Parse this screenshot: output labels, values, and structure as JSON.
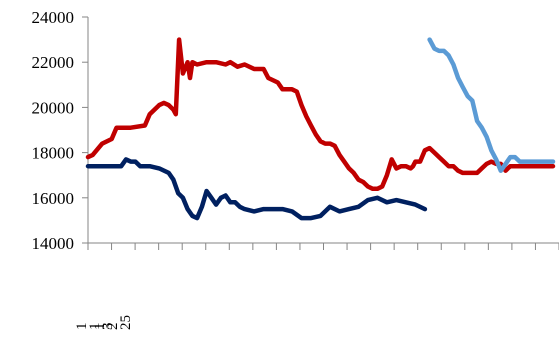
{
  "chart_data": {
    "type": "line",
    "ylim": [
      14000,
      24000
    ],
    "yticks": [
      14000,
      16000,
      18000,
      20000,
      22000,
      24000
    ],
    "grid": false,
    "legend": "none",
    "category_labels": [
      "1\n1\n3",
      "1\n2\n25"
    ],
    "x_tick_count": 20,
    "series": [
      {
        "color": "#c00000",
        "x": [
          0,
          1,
          3,
          5,
          6,
          8,
          9,
          12,
          13,
          15,
          16,
          17,
          18,
          18.5,
          19.2,
          20,
          21,
          21.5,
          22,
          23,
          25,
          27,
          29,
          30,
          31.5,
          33,
          35,
          37,
          38,
          40,
          41,
          42,
          43,
          44,
          45,
          46,
          47,
          48,
          49,
          50,
          51,
          52,
          53,
          54,
          55,
          56,
          57,
          58,
          59,
          60,
          61,
          62,
          63,
          64,
          65,
          66,
          67,
          68,
          68.5,
          69,
          70,
          71,
          72,
          73,
          74,
          75,
          76,
          77,
          78,
          79,
          80,
          81,
          82,
          83,
          84,
          85,
          86,
          87,
          88,
          88.5,
          89,
          90,
          91,
          92,
          93,
          94,
          95,
          96,
          97,
          98
        ],
        "values": [
          17800,
          17900,
          18400,
          18600,
          19100,
          19100,
          19100,
          19200,
          19700,
          20100,
          20200,
          20100,
          19900,
          19700,
          23000,
          21500,
          22000,
          21300,
          22000,
          21900,
          22000,
          22000,
          21900,
          22000,
          21800,
          21900,
          21700,
          21700,
          21300,
          21100,
          20800,
          20800,
          20800,
          20700,
          20100,
          19600,
          19200,
          18800,
          18500,
          18400,
          18400,
          18300,
          17900,
          17600,
          17300,
          17100,
          16800,
          16700,
          16500,
          16400,
          16400,
          16500,
          17000,
          17700,
          17300,
          17400,
          17400,
          17300,
          17400,
          17600,
          17600,
          18100,
          18200,
          18000,
          17800,
          17600,
          17400,
          17400,
          17200,
          17100,
          17100,
          17100,
          17100,
          17300,
          17500,
          17600,
          17500,
          17500,
          17200,
          17300,
          17400,
          17400,
          17400,
          17400,
          17400,
          17400,
          17400,
          17400,
          17400,
          17400
        ]
      },
      {
        "color": "#002060",
        "x": [
          0,
          2,
          5,
          7,
          8,
          9,
          10,
          11,
          13,
          15,
          17,
          18,
          19,
          20,
          21,
          22,
          23,
          24,
          25,
          26,
          27,
          28,
          29,
          30,
          31,
          32,
          33,
          35,
          37,
          39,
          41,
          43,
          45,
          47,
          49,
          51,
          53,
          55,
          57,
          59,
          61,
          63,
          65,
          67,
          69,
          71
        ],
        "values": [
          17400,
          17400,
          17400,
          17400,
          17700,
          17600,
          17600,
          17400,
          17400,
          17300,
          17100,
          16800,
          16200,
          16000,
          15500,
          15200,
          15100,
          15600,
          16300,
          16000,
          15700,
          16000,
          16100,
          15800,
          15800,
          15600,
          15500,
          15400,
          15500,
          15500,
          15500,
          15400,
          15100,
          15100,
          15200,
          15600,
          15400,
          15500,
          15600,
          15900,
          16000,
          15800,
          15900,
          15800,
          15700,
          15500
        ]
      },
      {
        "color": "#5b9bd5",
        "x": [
          72,
          73,
          74,
          75,
          76,
          77,
          78,
          79,
          80,
          81,
          82,
          83,
          84,
          85,
          86,
          87,
          88,
          89,
          90,
          91,
          92,
          93,
          94,
          95,
          96,
          97,
          98
        ],
        "values": [
          23000,
          22600,
          22500,
          22500,
          22300,
          21900,
          21300,
          20900,
          20500,
          20300,
          19400,
          19100,
          18700,
          18100,
          17700,
          17200,
          17500,
          17800,
          17800,
          17600,
          17600,
          17600,
          17600,
          17600,
          17600,
          17600,
          17600
        ]
      }
    ]
  }
}
